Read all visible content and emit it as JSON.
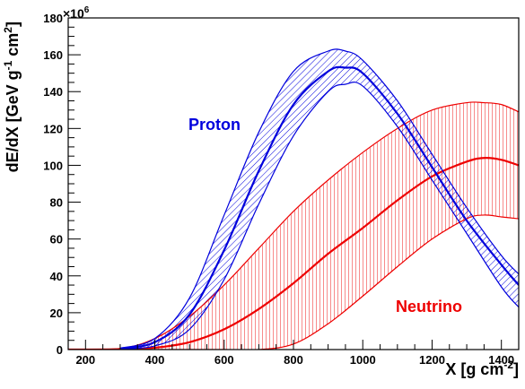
{
  "chart_data": {
    "type": "line",
    "title": "",
    "xlabel": "X [g cm",
    "xlabel_sup": "-2",
    "xlabel_end": "]",
    "ylabel": "dE/dX [GeV g",
    "ylabel_sup1": "-1",
    "ylabel_mid": " cm",
    "ylabel_sup2": "2",
    "ylabel_end": "]",
    "y_multiplier": "×10",
    "y_multiplier_exp": "6",
    "xlim": [
      150,
      1450
    ],
    "ylim": [
      0,
      180
    ],
    "x_ticks": [
      200,
      400,
      600,
      800,
      1000,
      1200,
      1400
    ],
    "x_tick_labels": [
      "200",
      "400",
      "600",
      "800",
      "1000",
      "1200",
      "1400"
    ],
    "y_ticks": [
      0,
      20,
      40,
      60,
      80,
      100,
      120,
      140,
      160,
      180
    ],
    "y_tick_labels": [
      "0",
      "20",
      "40",
      "60",
      "80",
      "100",
      "120",
      "140",
      "160",
      "180"
    ],
    "grid": false,
    "series": [
      {
        "name": "Proton",
        "color": "#0000dd",
        "band_style": "diagonal-hatch",
        "x": [
          300,
          400,
          500,
          600,
          700,
          800,
          900,
          950,
          1000,
          1100,
          1200,
          1300,
          1400,
          1450
        ],
        "y": [
          0.5,
          4,
          19,
          54,
          97,
          133,
          151,
          153,
          150,
          128,
          99,
          70,
          46,
          35
        ],
        "upper": [
          0.8,
          6,
          28,
          73,
          118,
          151,
          162,
          162,
          157,
          135,
          106,
          77,
          51,
          41
        ],
        "lower": [
          0.3,
          2,
          11,
          38,
          79,
          116,
          140,
          144,
          143,
          121,
          92,
          63,
          34,
          23
        ]
      },
      {
        "name": "Neutrino",
        "color": "#ee0000",
        "band_style": "vertical-hatch",
        "x": [
          150,
          300,
          400,
          500,
          600,
          700,
          800,
          900,
          1000,
          1100,
          1200,
          1300,
          1350,
          1400,
          1450
        ],
        "y": [
          0,
          0.2,
          1,
          4,
          11,
          22,
          36,
          52,
          66,
          81,
          94,
          102,
          104,
          103,
          100
        ],
        "upper": [
          0,
          0.6,
          6,
          18,
          35,
          55,
          75,
          92,
          107,
          120,
          130,
          134,
          134,
          133,
          129
        ],
        "lower": [
          0,
          0,
          0,
          0,
          0,
          0,
          3,
          14,
          29,
          45,
          60,
          71,
          73,
          72,
          71
        ]
      }
    ]
  }
}
